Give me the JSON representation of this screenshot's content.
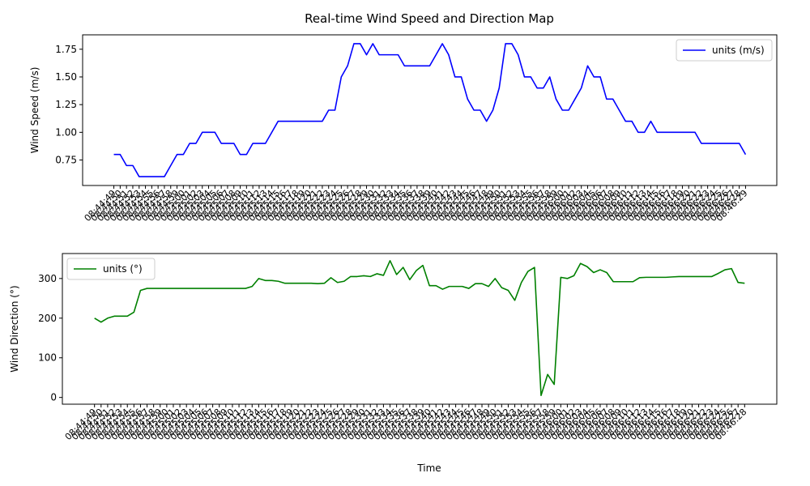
{
  "chart_data": [
    {
      "type": "line",
      "title": "Real-time Wind Speed and Direction Map",
      "xlabel": "",
      "ylabel": "Wind Speed (m/s)",
      "ylim": [
        0.52,
        1.88
      ],
      "yticks": [
        0.75,
        1.0,
        1.25,
        1.5,
        1.75
      ],
      "ytick_labels": [
        "0.75",
        "1.00",
        "1.25",
        "1.50",
        "1.75"
      ],
      "legend": "top-right",
      "series": [
        {
          "name": "units (m/s)",
          "color": "#0000ff",
          "values": [
            0.8,
            0.8,
            0.7,
            0.7,
            0.6,
            0.6,
            0.6,
            0.6,
            0.6,
            0.7,
            0.8,
            0.8,
            0.9,
            0.9,
            1.0,
            1.0,
            1.0,
            0.9,
            0.9,
            0.9,
            0.8,
            0.8,
            0.9,
            0.9,
            0.9,
            1.0,
            1.1,
            1.1,
            1.1,
            1.1,
            1.1,
            1.1,
            1.1,
            1.1,
            1.2,
            1.2,
            1.5,
            1.6,
            1.8,
            1.8,
            1.7,
            1.8,
            1.7,
            1.7,
            1.7,
            1.7,
            1.6,
            1.6,
            1.6,
            1.6,
            1.6,
            1.7,
            1.8,
            1.7,
            1.5,
            1.5,
            1.3,
            1.2,
            1.2,
            1.1,
            1.2,
            1.4,
            1.8,
            1.8,
            1.7,
            1.5,
            1.5,
            1.4,
            1.4,
            1.5,
            1.3,
            1.2,
            1.2,
            1.3,
            1.4,
            1.6,
            1.5,
            1.5,
            1.3,
            1.3,
            1.2,
            1.1,
            1.1,
            1.0,
            1.0,
            1.1,
            1.0,
            1.0,
            1.0,
            1.0,
            1.0,
            1.0,
            1.0,
            0.9,
            0.9,
            0.9,
            0.9,
            0.9,
            0.9,
            0.9,
            0.8
          ]
        }
      ]
    },
    {
      "type": "line",
      "title": "",
      "xlabel": "Time",
      "ylabel": "Wind Direction (°)",
      "ylim": [
        -17,
        363
      ],
      "yticks": [
        0,
        100,
        200,
        300
      ],
      "ytick_labels": [
        "0",
        "100",
        "200",
        "300"
      ],
      "legend": "top-left",
      "series": [
        {
          "name": "units (°)",
          "color": "#008000",
          "values": [
            200,
            190,
            200,
            205,
            205,
            205,
            215,
            270,
            275,
            275,
            275,
            275,
            275,
            275,
            275,
            275,
            275,
            275,
            275,
            275,
            275,
            275,
            275,
            275,
            280,
            300,
            295,
            295,
            293,
            288,
            288,
            288,
            288,
            288,
            287,
            288,
            302,
            290,
            293,
            305,
            305,
            307,
            305,
            312,
            308,
            345,
            310,
            328,
            297,
            320,
            333,
            282,
            282,
            273,
            280,
            280,
            280,
            275,
            287,
            287,
            280,
            300,
            277,
            270,
            245,
            290,
            318,
            328,
            5,
            58,
            33,
            303,
            300,
            307,
            338,
            330,
            315,
            322,
            315,
            292,
            292,
            292,
            292,
            302,
            303,
            303,
            303,
            303,
            304,
            305,
            305,
            305,
            305,
            305,
            305,
            313,
            322,
            325,
            290,
            288
          ]
        }
      ]
    }
  ]
}
